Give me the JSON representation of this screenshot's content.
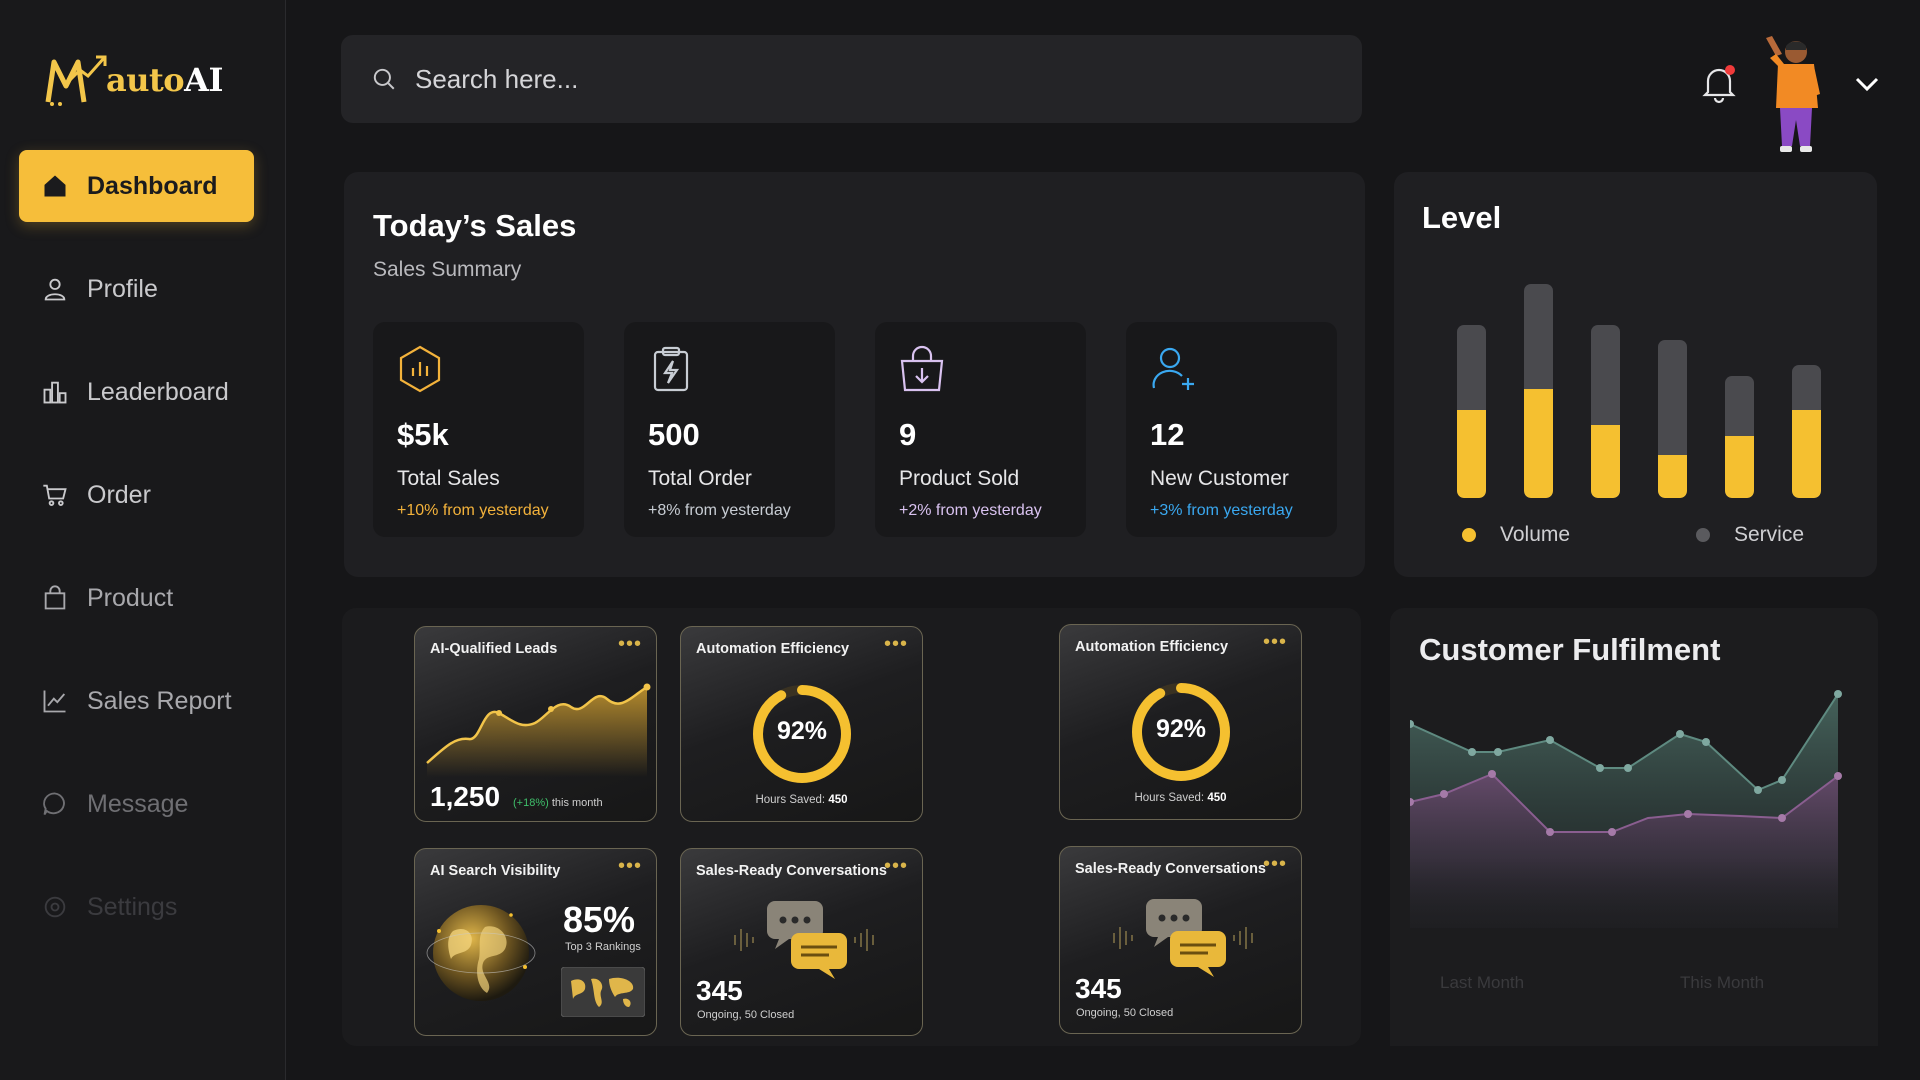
{
  "brand": {
    "logo_text_a": "auto",
    "logo_text_b": "AI",
    "logo_letter": "M"
  },
  "sidebar": {
    "items": [
      {
        "label": "Dashboard",
        "icon": "home-icon"
      },
      {
        "label": "Profile",
        "icon": "user-icon"
      },
      {
        "label": "Leaderboard",
        "icon": "leaderboard-icon"
      },
      {
        "label": "Order",
        "icon": "cart-icon"
      },
      {
        "label": "Product",
        "icon": "bag-icon"
      },
      {
        "label": "Sales Report",
        "icon": "chart-line-icon"
      },
      {
        "label": "Message",
        "icon": "message-icon"
      },
      {
        "label": "Settings",
        "icon": "gear-icon"
      }
    ]
  },
  "search": {
    "placeholder": "Search here..."
  },
  "sales": {
    "title": "Today’s Sales",
    "subtitle": "Sales Summary",
    "stats": [
      {
        "value": "$5k",
        "label": "Total Sales",
        "change": "+10% from yesterday",
        "color": "#f3b23b"
      },
      {
        "value": "500",
        "label": "Total Order",
        "change": "+8% from yesterday",
        "color": "#c8cdd4"
      },
      {
        "value": "9",
        "label": "Product Sold",
        "change": "+2% from yesterday",
        "color": "#d9c2f0"
      },
      {
        "value": "12",
        "label": "New Customer",
        "change": "+3% from yesterday",
        "color": "#3aa8f0"
      }
    ]
  },
  "level": {
    "title": "Level",
    "legend": [
      {
        "label": "Volume",
        "color": "#f5c030"
      },
      {
        "label": "Service",
        "color": "#5a5a5e"
      }
    ],
    "bars": [
      {
        "total": 0.81,
        "volume": 0.41
      },
      {
        "total": 1.0,
        "volume": 0.51
      },
      {
        "total": 0.81,
        "volume": 0.34
      },
      {
        "total": 0.74,
        "volume": 0.2
      },
      {
        "total": 0.57,
        "volume": 0.29
      },
      {
        "total": 0.62,
        "volume": 0.41
      }
    ]
  },
  "widgets": {
    "leads": {
      "title": "AI-Qualified Leads",
      "value": "1,250",
      "change": "(+18%)",
      "period": "this month"
    },
    "efficiency": {
      "title": "Automation Efficiency",
      "percent": "92%",
      "percent_value": 0.92,
      "hours_label": "Hours Saved:",
      "hours_value": "450"
    },
    "visibility": {
      "title": "AI Search Visibility",
      "percent": "85%",
      "caption": "Top 3 Rankings"
    },
    "conversations": {
      "title": "Sales-Ready Conversations",
      "value": "345",
      "caption": "Ongoing, 50 Closed"
    },
    "more_label": "•••"
  },
  "fulfilment": {
    "title": "Customer Fulfilment",
    "legend": [
      "Last Month",
      "This Month"
    ]
  },
  "colors": {
    "accent": "#f6be3a",
    "background": "#161618",
    "panel": "#1f1f22"
  }
}
